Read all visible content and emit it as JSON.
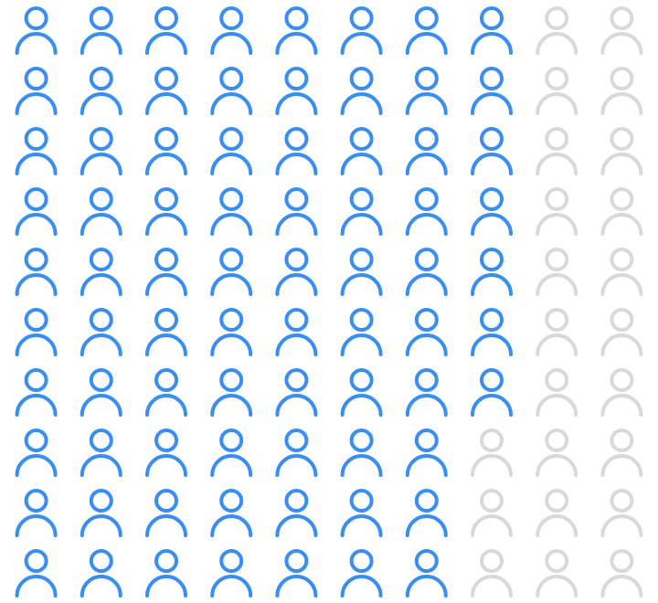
{
  "chart_data": {
    "type": "pictogram",
    "value": 77,
    "total": 100,
    "rows": 10,
    "columns": 10,
    "fill_order": "column",
    "color": "#3a8ef0",
    "empty_color": "#d9d9d9"
  }
}
